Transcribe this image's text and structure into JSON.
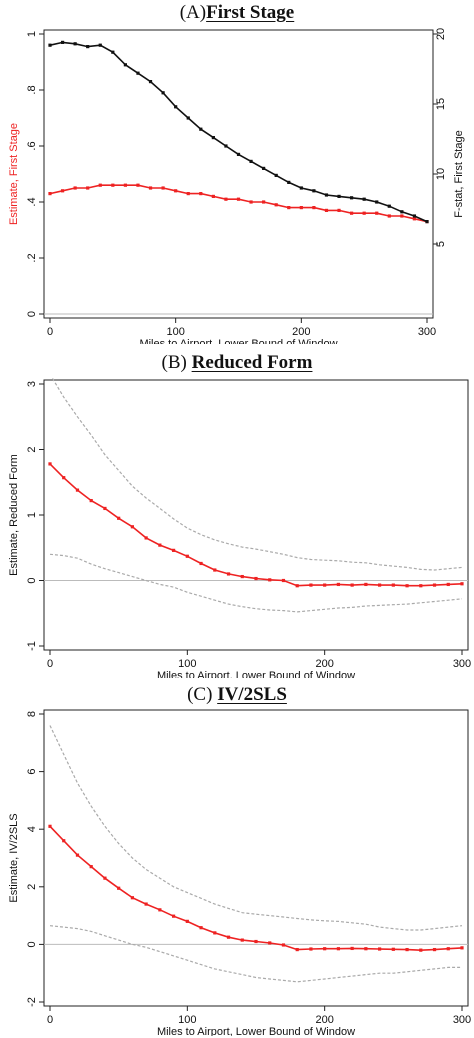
{
  "panels": [
    {
      "letter": "(A)",
      "name": "First Stage"
    },
    {
      "letter": "(B)",
      "name": "Reduced Form"
    },
    {
      "letter": "(C)",
      "name": "IV/2SLS"
    }
  ],
  "chart_data": [
    {
      "type": "line",
      "title": "(A) First Stage",
      "xlabel": "Miles to Airport, Lower Bound of Window",
      "ylabel": "Estimate, First Stage",
      "y2label": "F-stat, First Stage",
      "xlim": [
        0,
        300
      ],
      "ylim": [
        0,
        1
      ],
      "y2lim": [
        0,
        20
      ],
      "xticks": [
        "0",
        "100",
        "200",
        "300"
      ],
      "yticks": [
        "0",
        ".2",
        ".4",
        ".6",
        ".8",
        "1"
      ],
      "y2ticks": [
        "5",
        "10",
        "15",
        "20"
      ],
      "grid": false,
      "x": [
        0,
        10,
        20,
        30,
        40,
        50,
        60,
        70,
        80,
        90,
        100,
        110,
        120,
        130,
        140,
        150,
        160,
        170,
        180,
        190,
        200,
        210,
        220,
        230,
        240,
        250,
        260,
        270,
        280,
        290,
        300
      ],
      "series": [
        {
          "axis": "left",
          "color": "#ee2222",
          "values": [
            0.43,
            0.44,
            0.45,
            0.45,
            0.46,
            0.46,
            0.46,
            0.46,
            0.45,
            0.45,
            0.44,
            0.43,
            0.43,
            0.42,
            0.41,
            0.41,
            0.4,
            0.4,
            0.39,
            0.38,
            0.38,
            0.38,
            0.37,
            0.37,
            0.36,
            0.36,
            0.36,
            0.35,
            0.35,
            0.34,
            0.33
          ]
        },
        {
          "axis": "right",
          "color": "#111111",
          "values": [
            19.2,
            19.4,
            19.3,
            19.1,
            19.2,
            18.7,
            17.8,
            17.2,
            16.6,
            15.8,
            14.8,
            14.0,
            13.2,
            12.6,
            12.0,
            11.4,
            10.9,
            10.4,
            9.9,
            9.4,
            9.0,
            8.8,
            8.5,
            8.4,
            8.3,
            8.2,
            8.0,
            7.7,
            7.3,
            7.0,
            6.6
          ]
        }
      ]
    },
    {
      "type": "line",
      "title": "(B) Reduced Form",
      "xlabel": "Miles to Airport, Lower Bound of Window",
      "ylabel": "Estimate, Reduced Form",
      "xlim": [
        0,
        300
      ],
      "ylim": [
        -1,
        3
      ],
      "xticks": [
        "0",
        "100",
        "200",
        "300"
      ],
      "yticks": [
        "-1",
        "0",
        "1",
        "2",
        "3"
      ],
      "grid": false,
      "x": [
        0,
        10,
        20,
        30,
        40,
        50,
        60,
        70,
        80,
        90,
        100,
        110,
        120,
        130,
        140,
        150,
        160,
        170,
        180,
        190,
        200,
        210,
        220,
        230,
        240,
        250,
        260,
        270,
        280,
        290,
        300
      ],
      "series": [
        {
          "color": "#ee2222",
          "values": [
            1.78,
            1.57,
            1.38,
            1.22,
            1.1,
            0.95,
            0.82,
            0.65,
            0.54,
            0.46,
            0.37,
            0.26,
            0.16,
            0.1,
            0.06,
            0.03,
            0.01,
            0.0,
            -0.08,
            -0.07,
            -0.07,
            -0.06,
            -0.07,
            -0.06,
            -0.07,
            -0.07,
            -0.08,
            -0.08,
            -0.07,
            -0.06,
            -0.05
          ]
        },
        {
          "color": "#aaaaaa",
          "dashed": true,
          "values": [
            3.15,
            2.8,
            2.5,
            2.22,
            1.92,
            1.68,
            1.44,
            1.26,
            1.1,
            0.94,
            0.8,
            0.7,
            0.62,
            0.56,
            0.51,
            0.48,
            0.44,
            0.4,
            0.35,
            0.32,
            0.31,
            0.3,
            0.28,
            0.27,
            0.24,
            0.22,
            0.2,
            0.17,
            0.16,
            0.18,
            0.2
          ]
        },
        {
          "color": "#aaaaaa",
          "dashed": true,
          "values": [
            0.4,
            0.38,
            0.34,
            0.25,
            0.18,
            0.12,
            0.06,
            0.0,
            -0.06,
            -0.1,
            -0.18,
            -0.24,
            -0.3,
            -0.36,
            -0.4,
            -0.43,
            -0.45,
            -0.46,
            -0.48,
            -0.46,
            -0.44,
            -0.42,
            -0.41,
            -0.39,
            -0.38,
            -0.37,
            -0.36,
            -0.34,
            -0.32,
            -0.3,
            -0.28
          ]
        }
      ]
    },
    {
      "type": "line",
      "title": "(C) IV/2SLS",
      "xlabel": "Miles to Airport, Lower Bound of Window",
      "ylabel": "Estimate, IV/2SLS",
      "xlim": [
        0,
        300
      ],
      "ylim": [
        -2,
        8
      ],
      "xticks": [
        "0",
        "100",
        "200",
        "300"
      ],
      "yticks": [
        "-2",
        "0",
        "2",
        "4",
        "6",
        "8"
      ],
      "grid": false,
      "x": [
        0,
        10,
        20,
        30,
        40,
        50,
        60,
        70,
        80,
        90,
        100,
        110,
        120,
        130,
        140,
        150,
        160,
        170,
        180,
        190,
        200,
        210,
        220,
        230,
        240,
        250,
        260,
        270,
        280,
        290,
        300
      ],
      "series": [
        {
          "color": "#ee2222",
          "values": [
            4.1,
            3.6,
            3.1,
            2.7,
            2.3,
            1.95,
            1.62,
            1.4,
            1.2,
            0.98,
            0.8,
            0.58,
            0.4,
            0.25,
            0.15,
            0.1,
            0.05,
            -0.02,
            -0.18,
            -0.16,
            -0.15,
            -0.15,
            -0.14,
            -0.15,
            -0.16,
            -0.17,
            -0.18,
            -0.2,
            -0.18,
            -0.15,
            -0.12
          ]
        },
        {
          "color": "#aaaaaa",
          "dashed": true,
          "values": [
            7.6,
            6.6,
            5.6,
            4.8,
            4.1,
            3.5,
            3.0,
            2.6,
            2.3,
            2.0,
            1.8,
            1.6,
            1.4,
            1.25,
            1.1,
            1.05,
            1.0,
            0.95,
            0.9,
            0.85,
            0.82,
            0.8,
            0.75,
            0.7,
            0.6,
            0.55,
            0.5,
            0.5,
            0.55,
            0.6,
            0.65
          ]
        },
        {
          "color": "#aaaaaa",
          "dashed": true,
          "values": [
            0.65,
            0.6,
            0.55,
            0.45,
            0.3,
            0.15,
            0.0,
            -0.1,
            -0.25,
            -0.4,
            -0.55,
            -0.7,
            -0.85,
            -0.95,
            -1.05,
            -1.15,
            -1.2,
            -1.25,
            -1.3,
            -1.25,
            -1.2,
            -1.15,
            -1.1,
            -1.05,
            -1.0,
            -1.0,
            -0.95,
            -0.9,
            -0.85,
            -0.8,
            -0.8
          ]
        }
      ]
    }
  ]
}
